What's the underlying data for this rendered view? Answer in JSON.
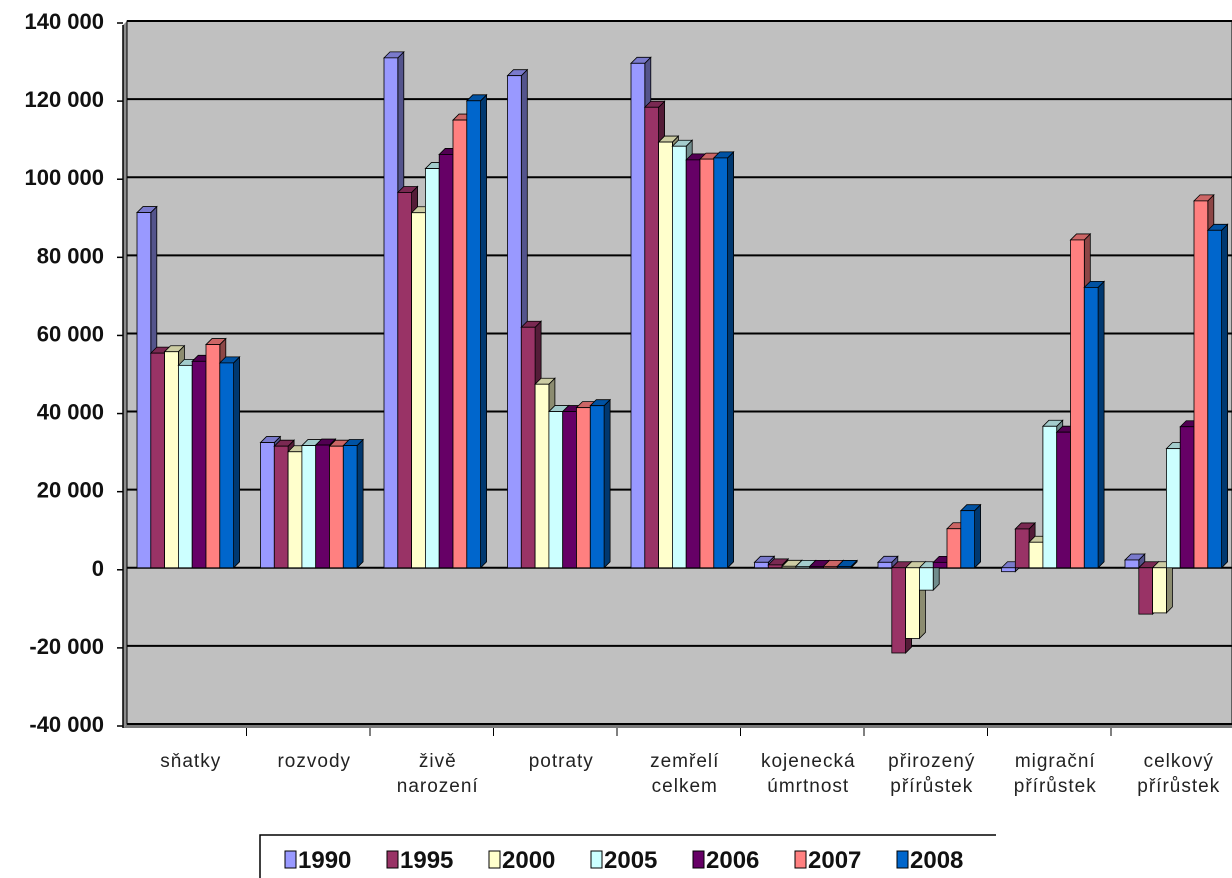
{
  "chart_data": {
    "type": "bar",
    "categories": [
      [
        "sňatky"
      ],
      [
        "rozvody"
      ],
      [
        "živě",
        "narození"
      ],
      [
        "potraty"
      ],
      [
        "zemřelí",
        "celkem"
      ],
      [
        "kojenecká",
        "úmrtnost"
      ],
      [
        "přirozený",
        "přírůstek"
      ],
      [
        "migrační",
        "přírůstek"
      ],
      [
        "celkový",
        "přírůstek"
      ]
    ],
    "series": [
      {
        "name": "1990",
        "color": "#9999ff",
        "values": [
          90953,
          32055,
          130564,
          126000,
          129166,
          1400,
          1398,
          -1000,
          2000
        ]
      },
      {
        "name": "1995",
        "color": "#993366",
        "values": [
          54956,
          31135,
          96097,
          61590,
          117913,
          740,
          -21816,
          9950,
          -11866
        ]
      },
      {
        "name": "2000",
        "color": "#ffffcc",
        "values": [
          55321,
          29704,
          90910,
          47000,
          109001,
          375,
          -18091,
          6539,
          -11552
        ]
      },
      {
        "name": "2005",
        "color": "#ccffff",
        "values": [
          51829,
          31288,
          102211,
          40000,
          107938,
          350,
          -5727,
          36229,
          30502
        ]
      },
      {
        "name": "2006",
        "color": "#660066",
        "values": [
          52860,
          31415,
          105831,
          40000,
          104441,
          350,
          1390,
          34720,
          36110
        ]
      },
      {
        "name": "2007",
        "color": "#ff8080",
        "values": [
          57157,
          31129,
          114632,
          41000,
          104636,
          360,
          9996,
          83945,
          93941
        ]
      },
      {
        "name": "2008",
        "color": "#0066cc",
        "values": [
          52457,
          31300,
          119570,
          41500,
          104948,
          340,
          14622,
          71790,
          86412
        ]
      }
    ],
    "y_ticks": [
      "140 000",
      "120 000",
      "100 000",
      "80 000",
      "60 000",
      "40 000",
      "20 000",
      "0",
      "-20 000",
      "-40 000"
    ],
    "ylim": [
      -40000,
      140000
    ],
    "grid": true,
    "legend_position": "bottom",
    "plot_background": "#c0c0c0",
    "title": "",
    "xlabel": "",
    "ylabel": ""
  }
}
